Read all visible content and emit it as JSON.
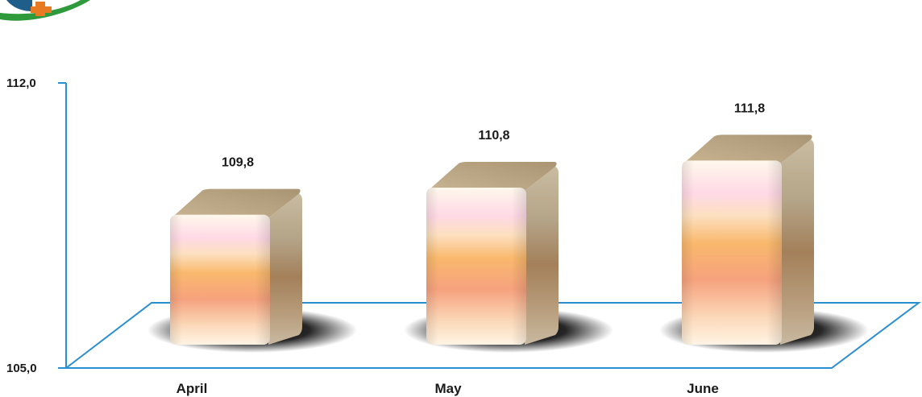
{
  "chart_data": {
    "type": "bar",
    "categories": [
      "April",
      "May",
      "June"
    ],
    "values": [
      109.8,
      110.8,
      111.8
    ],
    "value_labels": [
      "109,8",
      "110,8",
      "111,8"
    ],
    "ylim": [
      105.0,
      112.0
    ],
    "yticks": [
      105.0,
      112.0
    ],
    "ytick_labels": [
      "105,0",
      "112,0"
    ],
    "title": "",
    "xlabel": "",
    "ylabel": "",
    "grid": false,
    "legend": "none",
    "colors": {
      "axis": "#2a8fd0",
      "bar_light": "#fff6e8",
      "bar_pink": "#ffd6e4",
      "bar_orange": "#f8b26a",
      "bar_salmon": "#f4a07a",
      "bar_top": "#b8a585",
      "bar_side": "#a0825e"
    }
  },
  "logo": {
    "colors": [
      "#2e9a3c",
      "#1f5d8a",
      "#e87a24"
    ]
  }
}
